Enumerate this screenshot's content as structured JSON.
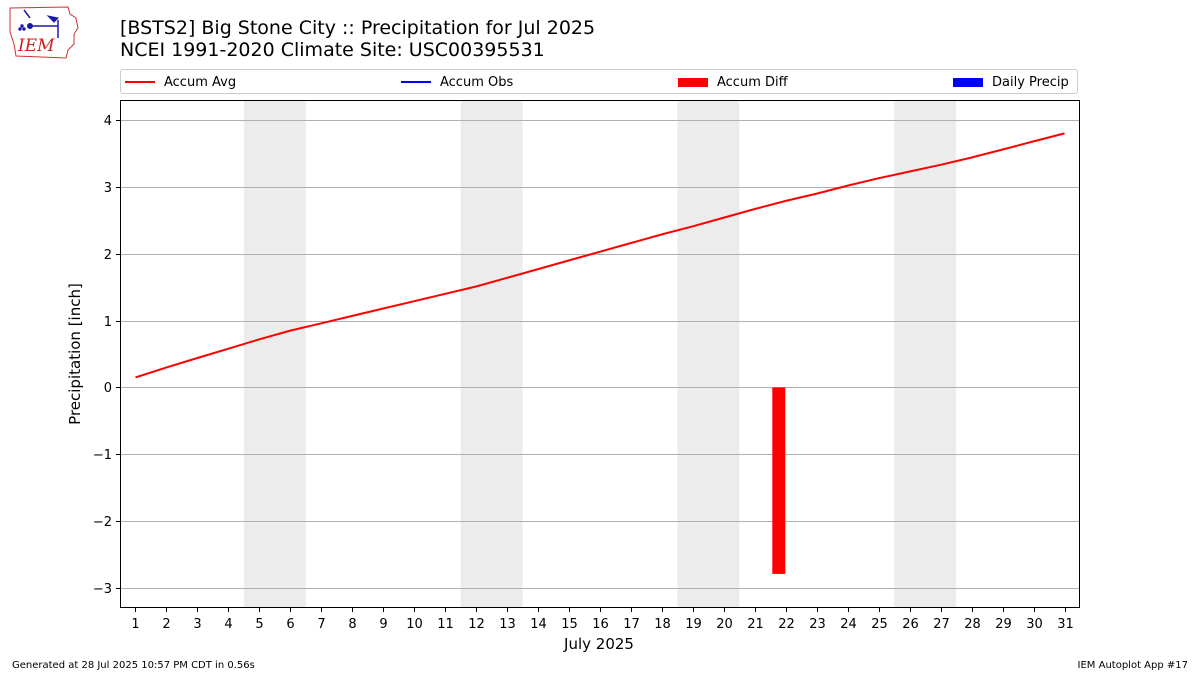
{
  "header": {
    "title_line1": "[BSTS2] Big Stone City :: Precipitation for Jul 2025",
    "title_line2": "NCEI 1991-2020 Climate Site: USC00395531",
    "logo_text": "IEM"
  },
  "legend": {
    "items": [
      {
        "label": "Accum Avg",
        "color": "#ff0000",
        "kind": "line"
      },
      {
        "label": "Accum Obs",
        "color": "#0000ff",
        "kind": "line"
      },
      {
        "label": "Accum Diff",
        "color": "#ff0000",
        "kind": "box"
      },
      {
        "label": "Daily Precip",
        "color": "#0000ff",
        "kind": "box"
      }
    ]
  },
  "footer": {
    "left": "Generated at 28 Jul 2025 10:57 PM CDT in 0.56s",
    "right": "IEM Autoplot App #17"
  },
  "chart_data": {
    "type": "line",
    "xlabel": "July 2025",
    "ylabel": "Precipitation [inch]",
    "xlim": [
      0.5,
      31.5
    ],
    "ylim": [
      -3.3,
      4.3
    ],
    "yticks": [
      -3,
      -2,
      -1,
      0,
      1,
      2,
      3,
      4
    ],
    "ytick_labels": [
      "−3",
      "−2",
      "−1",
      "0",
      "1",
      "2",
      "3",
      "4"
    ],
    "x": [
      1,
      2,
      3,
      4,
      5,
      6,
      7,
      8,
      9,
      10,
      11,
      12,
      13,
      14,
      15,
      16,
      17,
      18,
      19,
      20,
      21,
      22,
      23,
      24,
      25,
      26,
      27,
      28,
      29,
      30,
      31
    ],
    "weekend_bands": [
      [
        4.5,
        6.5
      ],
      [
        11.5,
        13.5
      ],
      [
        18.5,
        20.5
      ],
      [
        25.5,
        27.5
      ]
    ],
    "grid": "y",
    "series": [
      {
        "name": "Accum Avg",
        "type": "line",
        "color": "#ff0000",
        "values": [
          0.15,
          0.3,
          0.44,
          0.58,
          0.72,
          0.85,
          0.96,
          1.07,
          1.18,
          1.29,
          1.4,
          1.51,
          1.64,
          1.77,
          1.9,
          2.03,
          2.16,
          2.29,
          2.41,
          2.54,
          2.67,
          2.79,
          2.9,
          3.02,
          3.13,
          3.23,
          3.33,
          3.44,
          3.56,
          3.68,
          3.8
        ]
      },
      {
        "name": "Accum Diff",
        "type": "bar",
        "color": "#ff0000",
        "x": [
          22
        ],
        "values": [
          -2.79
        ]
      }
    ]
  }
}
